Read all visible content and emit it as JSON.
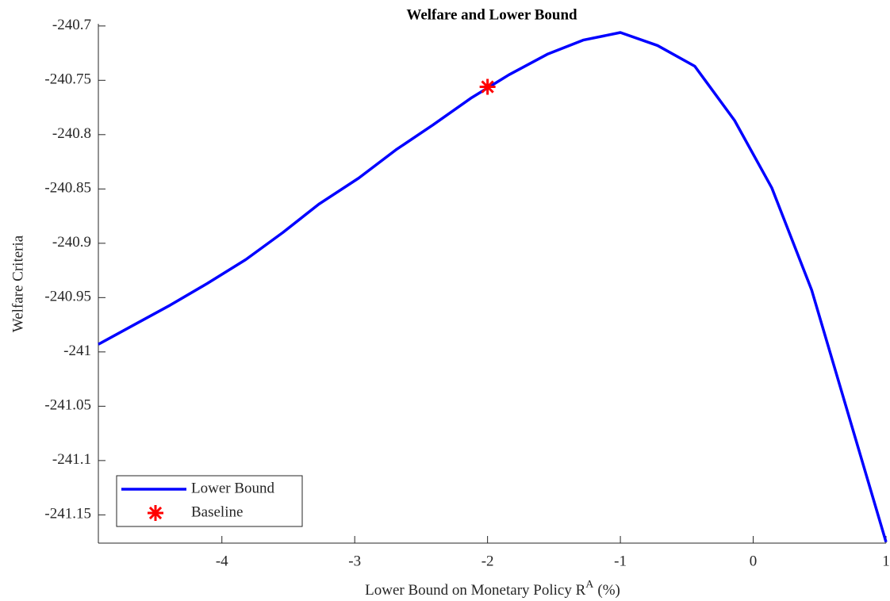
{
  "chart_data": {
    "type": "line",
    "title": "Welfare and Lower Bound",
    "xlabel": {
      "text": "Lower Bound on Monetary Policy R",
      "superscript": "A",
      "suffix": "(%)"
    },
    "ylabel": "Welfare Criteria",
    "xlim": [
      -4.93,
      1.0
    ],
    "ylim": [
      -241.176,
      -240.706
    ],
    "xticks": [
      -4,
      -3,
      -2,
      -1,
      0,
      1
    ],
    "yticks": [
      -240.7,
      -240.75,
      -240.8,
      -240.85,
      -240.9,
      -240.95,
      -241,
      -241.05,
      -241.1,
      -241.15
    ],
    "legend_position": "lower left",
    "series": [
      {
        "name": "Lower Bound",
        "color": "#0000ff",
        "mark": "line",
        "x": [
          -4.93,
          -4.66,
          -4.39,
          -4.11,
          -3.82,
          -3.54,
          -3.27,
          -2.97,
          -2.69,
          -2.41,
          -2.12,
          -1.84,
          -1.55,
          -1.28,
          -1.0,
          -0.72,
          -0.44,
          -0.14,
          0.14,
          0.44,
          1.0
        ],
        "values": [
          -240.993,
          -240.975,
          -240.957,
          -240.937,
          -240.915,
          -240.89,
          -240.864,
          -240.84,
          -240.814,
          -240.791,
          -240.766,
          -240.745,
          -240.726,
          -240.713,
          -240.706,
          -240.718,
          -240.737,
          -240.787,
          -240.849,
          -240.943,
          -241.175
        ]
      },
      {
        "name": "Baseline",
        "color": "#ff0000",
        "mark": "asterisk",
        "x": [
          -2
        ],
        "values": [
          -240.756
        ]
      }
    ]
  }
}
